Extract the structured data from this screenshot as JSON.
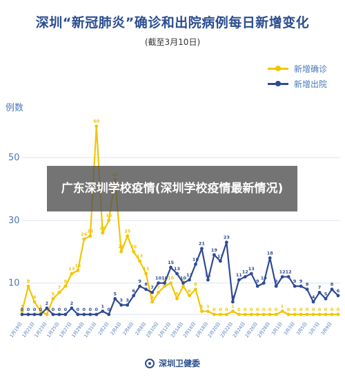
{
  "header": {
    "title": "深圳“新冠肺炎”确诊和出院病例每日新增变化",
    "subtitle": "(截至3月10日)",
    "y_unit": "例数"
  },
  "overlay": {
    "text": "广东深圳学校疫情(深圳学校疫情最新情况)"
  },
  "footer": {
    "source": "深圳卫健委"
  },
  "colors": {
    "confirmed": "#f2c500",
    "discharged": "#2e4a94",
    "grid": "#dbe3ee",
    "axis_text": "#4a78b8"
  },
  "chart_data": {
    "type": "line",
    "title": "深圳“新冠肺炎”确诊和出院病例每日新增变化",
    "subtitle": "(截至3月10日)",
    "ylabel": "例数",
    "xlabel": "",
    "ylim": [
      0,
      65
    ],
    "yticks": [
      10,
      30,
      50
    ],
    "grid": true,
    "legend": "top-right",
    "x": [
      "1月19日",
      "1月20日",
      "1月21日",
      "1月22日",
      "1月23日",
      "1月24日",
      "1月25日",
      "1月26日",
      "1月27日",
      "1月28日",
      "1月29日",
      "1月30日",
      "1月31日",
      "2月1日",
      "2月2日",
      "2月3日",
      "2月4日",
      "2月5日",
      "2月6日",
      "2月7日",
      "2月8日",
      "2月9日",
      "2月10日",
      "2月11日",
      "2月12日",
      "2月13日",
      "2月14日",
      "2月15日",
      "2月16日",
      "2月17日",
      "2月18日",
      "2月19日",
      "2月20日",
      "2月21日",
      "2月22日",
      "2月23日",
      "2月24日",
      "2月25日",
      "2月26日",
      "2月27日",
      "2月28日",
      "2月29日",
      "3月1日",
      "3月2日",
      "3月3日",
      "3月4日",
      "3月5日",
      "3月6日",
      "3月7日",
      "3月8日",
      "3月9日",
      "3月10日"
    ],
    "xtick_labels": [
      "1月19日",
      "1月21日",
      "1月23日",
      "1月25日",
      "1月27日",
      "1月29日",
      "1月31日",
      "2月2日",
      "2月4日",
      "2月6日",
      "2月8日",
      "2月10日",
      "2月12日",
      "2月14日",
      "2月16日",
      "2月18日",
      "2月20日",
      "2月22日",
      "2月24日",
      "2月26日",
      "2月28日",
      "3月1日",
      "3月3日",
      "3月5日",
      "3月7日",
      "3月9日"
    ],
    "series": [
      {
        "name": "新增确诊",
        "values": [
          1,
          9,
          4,
          1,
          0,
          5,
          7,
          9,
          13,
          14,
          24,
          25,
          60,
          26,
          30,
          43,
          20,
          25,
          20,
          17,
          13,
          4,
          7,
          9,
          10,
          5,
          9,
          6,
          8,
          1,
          1,
          0,
          0,
          0,
          1,
          0,
          0,
          0,
          0,
          0,
          0,
          0,
          1,
          0,
          0,
          0,
          0,
          0,
          0,
          0,
          0,
          0
        ]
      },
      {
        "name": "新增出院",
        "values": [
          0,
          0,
          0,
          0,
          2,
          0,
          0,
          0,
          2,
          0,
          0,
          0,
          0,
          1,
          0,
          5,
          3,
          3,
          6,
          9,
          8,
          7,
          10,
          10,
          15,
          13,
          10,
          11,
          16,
          21,
          11,
          19,
          17,
          23,
          4,
          11,
          12,
          13,
          9,
          10,
          18,
          9,
          12,
          12,
          9,
          9,
          8,
          4,
          7,
          5,
          8,
          6
        ]
      }
    ]
  }
}
